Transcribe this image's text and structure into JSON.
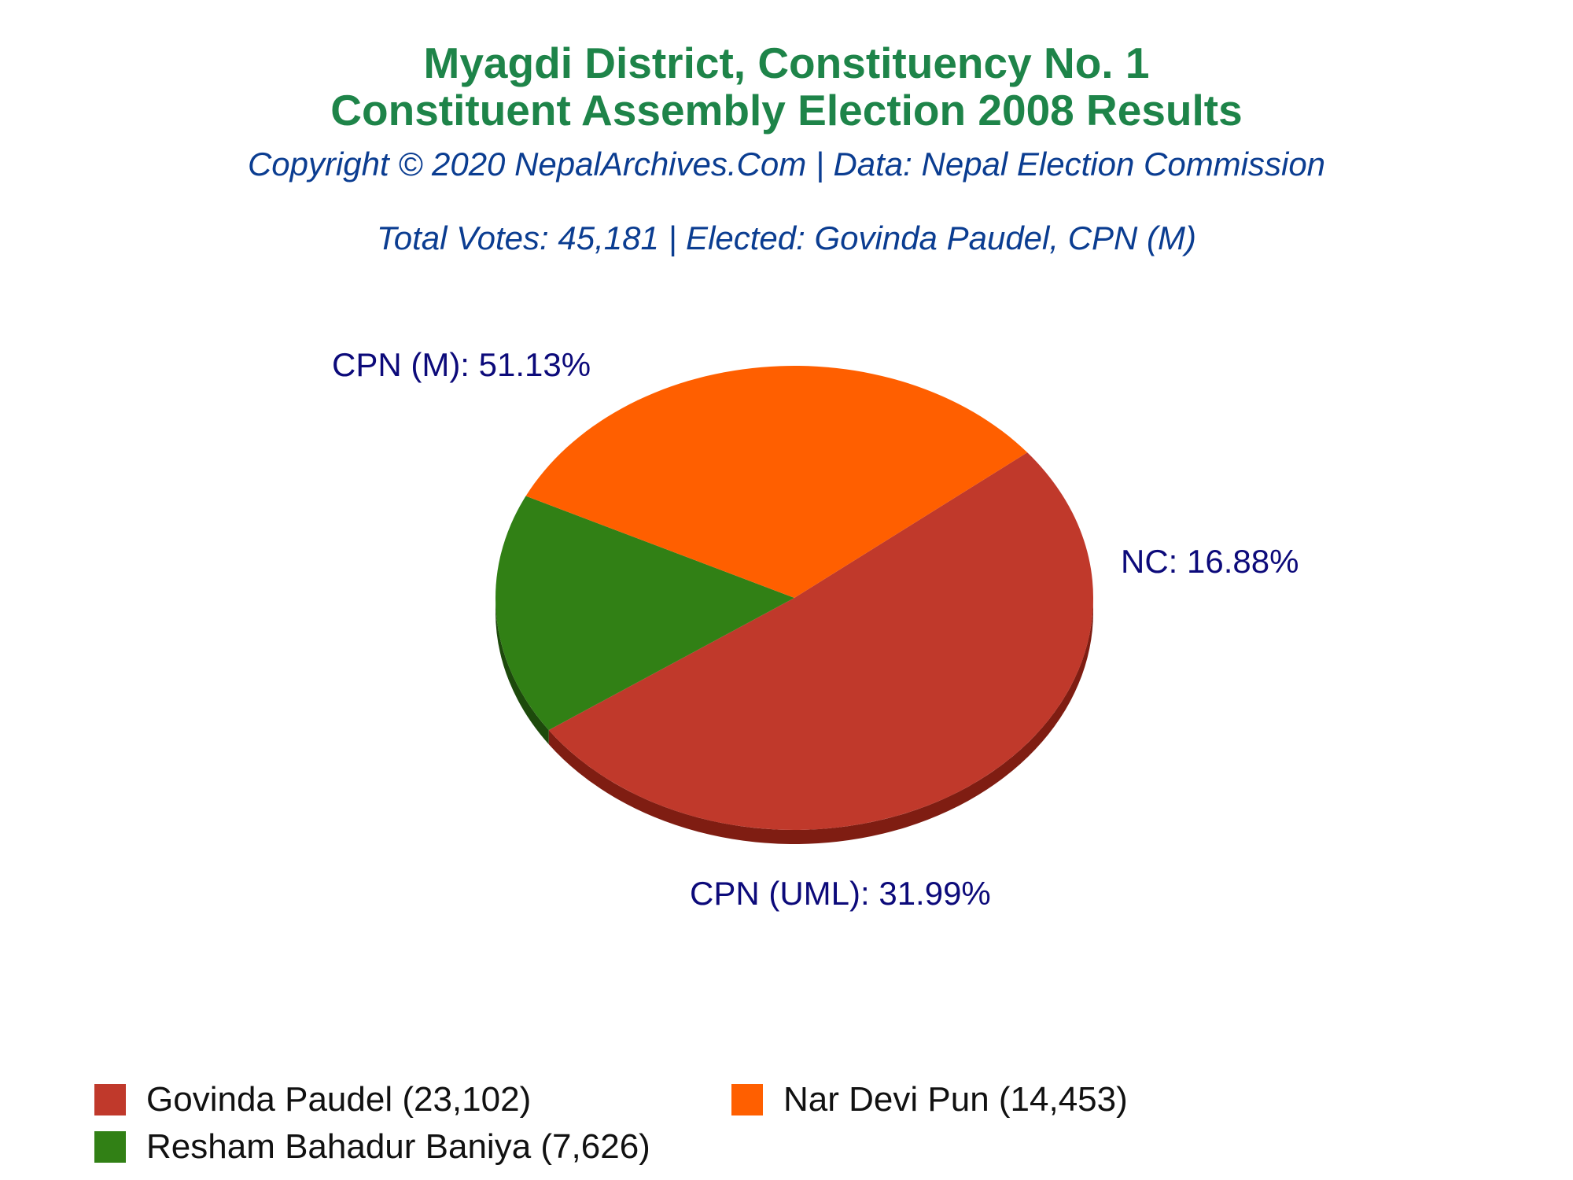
{
  "header": {
    "title_line1": "Myagdi District, Constituency No. 1",
    "title_line2": "Constituent Assembly Election 2008 Results",
    "copyright": "Copyright © 2020 NepalArchives.Com | Data: Nepal Election Commission",
    "summary": "Total Votes: 45,181 | Elected: Govinda Paudel, CPN (M)"
  },
  "chart_data": {
    "type": "pie",
    "slices": [
      {
        "label": "CPN (M): 51.13%",
        "party": "CPN (M)",
        "percent": 51.13,
        "color": "#c0392b",
        "side_color": "#7f1d12"
      },
      {
        "label": "NC: 16.88%",
        "party": "NC",
        "percent": 16.88,
        "color": "#318015",
        "side_color": "#1d4a0c"
      },
      {
        "label": "CPN (UML): 31.99%",
        "party": "CPN (UML)",
        "percent": 31.99,
        "color": "#ff5f00",
        "side_color": "#a30000"
      }
    ],
    "legend": [
      {
        "text": "Govinda Paudel (23,102)",
        "votes": 23102,
        "color": "#c0392b"
      },
      {
        "text": "Nar Devi Pun (14,453)",
        "votes": 14453,
        "color": "#ff5f00"
      },
      {
        "text": "Resham Bahadur Baniya (7,626)",
        "votes": 7626,
        "color": "#318015"
      }
    ],
    "legend_position": "bottom"
  }
}
